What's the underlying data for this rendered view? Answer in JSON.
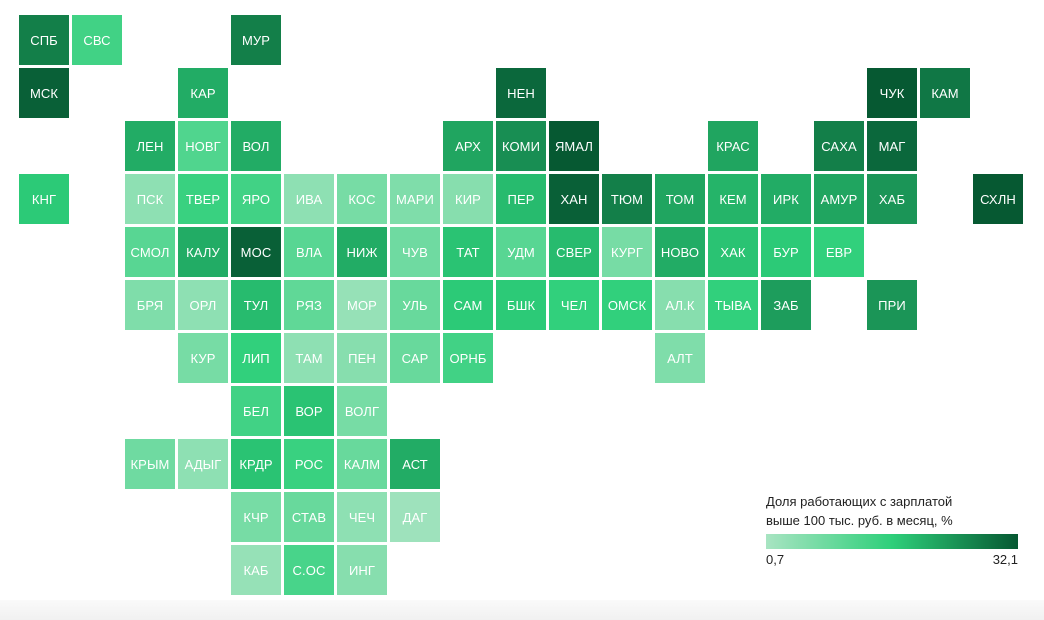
{
  "colors": {
    "min": "#a8e4c2",
    "mid": "#2ecf7a",
    "max": "#065832",
    "text": "#ffffff"
  },
  "legend": {
    "title_line1": "Доля работающих с зарплатой",
    "title_line2": "выше 100 тыс. руб. в месяц, %",
    "min_label": "0,7",
    "max_label": "32,1",
    "min": 0.7,
    "max": 32.1
  },
  "tiles": [
    {
      "label": "СПБ",
      "row": 0,
      "col": 0,
      "value": 27
    },
    {
      "label": "СВС",
      "row": 0,
      "col": 1,
      "value": 14
    },
    {
      "label": "МУР",
      "row": 0,
      "col": 4,
      "value": 27
    },
    {
      "label": "МСК",
      "row": 1,
      "col": 0,
      "value": 31
    },
    {
      "label": "КАР",
      "row": 1,
      "col": 3,
      "value": 21
    },
    {
      "label": "НЕН",
      "row": 1,
      "col": 9,
      "value": 30
    },
    {
      "label": "ЧУК",
      "row": 1,
      "col": 16,
      "value": 32
    },
    {
      "label": "КАМ",
      "row": 1,
      "col": 17,
      "value": 28
    },
    {
      "label": "ЛЕН",
      "row": 2,
      "col": 2,
      "value": 21
    },
    {
      "label": "НОВГ",
      "row": 2,
      "col": 3,
      "value": 12
    },
    {
      "label": "ВОЛ",
      "row": 2,
      "col": 4,
      "value": 21
    },
    {
      "label": "АРХ",
      "row": 2,
      "col": 8,
      "value": 22
    },
    {
      "label": "КОМИ",
      "row": 2,
      "col": 9,
      "value": 25
    },
    {
      "label": "ЯМАЛ",
      "row": 2,
      "col": 10,
      "value": 32
    },
    {
      "label": "КРАС",
      "row": 2,
      "col": 13,
      "value": 22
    },
    {
      "label": "САХА",
      "row": 2,
      "col": 15,
      "value": 27
    },
    {
      "label": "МАГ",
      "row": 2,
      "col": 16,
      "value": 30
    },
    {
      "label": "КНГ",
      "row": 3,
      "col": 0,
      "value": 17
    },
    {
      "label": "ПСК",
      "row": 3,
      "col": 2,
      "value": 4
    },
    {
      "label": "ТВЕР",
      "row": 3,
      "col": 3,
      "value": 15
    },
    {
      "label": "ЯРО",
      "row": 3,
      "col": 4,
      "value": 14
    },
    {
      "label": "ИВА",
      "row": 3,
      "col": 5,
      "value": 4
    },
    {
      "label": "КОС",
      "row": 3,
      "col": 6,
      "value": 7
    },
    {
      "label": "МАРИ",
      "row": 3,
      "col": 7,
      "value": 6
    },
    {
      "label": "КИР",
      "row": 3,
      "col": 8,
      "value": 5
    },
    {
      "label": "ПЕР",
      "row": 3,
      "col": 9,
      "value": 19
    },
    {
      "label": "ХАН",
      "row": 3,
      "col": 10,
      "value": 31
    },
    {
      "label": "ТЮМ",
      "row": 3,
      "col": 11,
      "value": 27
    },
    {
      "label": "ТОМ",
      "row": 3,
      "col": 12,
      "value": 22
    },
    {
      "label": "КЕМ",
      "row": 3,
      "col": 13,
      "value": 20
    },
    {
      "label": "ИРК",
      "row": 3,
      "col": 14,
      "value": 21
    },
    {
      "label": "АМУР",
      "row": 3,
      "col": 15,
      "value": 22
    },
    {
      "label": "ХАБ",
      "row": 3,
      "col": 16,
      "value": 24
    },
    {
      "label": "СХЛН",
      "row": 3,
      "col": 18,
      "value": 32
    },
    {
      "label": "СМОЛ",
      "row": 4,
      "col": 2,
      "value": 11
    },
    {
      "label": "КАЛУ",
      "row": 4,
      "col": 3,
      "value": 21
    },
    {
      "label": "МОС",
      "row": 4,
      "col": 4,
      "value": 31
    },
    {
      "label": "ВЛА",
      "row": 4,
      "col": 5,
      "value": 11
    },
    {
      "label": "НИЖ",
      "row": 4,
      "col": 6,
      "value": 21
    },
    {
      "label": "ЧУВ",
      "row": 4,
      "col": 7,
      "value": 8
    },
    {
      "label": "ТАТ",
      "row": 4,
      "col": 8,
      "value": 18
    },
    {
      "label": "УДМ",
      "row": 4,
      "col": 9,
      "value": 11
    },
    {
      "label": "СВЕР",
      "row": 4,
      "col": 10,
      "value": 19
    },
    {
      "label": "КУРГ",
      "row": 4,
      "col": 11,
      "value": 7
    },
    {
      "label": "НОВО",
      "row": 4,
      "col": 12,
      "value": 21
    },
    {
      "label": "ХАК",
      "row": 4,
      "col": 13,
      "value": 18
    },
    {
      "label": "БУР",
      "row": 4,
      "col": 14,
      "value": 17
    },
    {
      "label": "ЕВР",
      "row": 4,
      "col": 15,
      "value": 16
    },
    {
      "label": "БРЯ",
      "row": 5,
      "col": 2,
      "value": 6
    },
    {
      "label": "ОРЛ",
      "row": 5,
      "col": 3,
      "value": 4
    },
    {
      "label": "ТУЛ",
      "row": 5,
      "col": 4,
      "value": 19
    },
    {
      "label": "РЯЗ",
      "row": 5,
      "col": 5,
      "value": 10
    },
    {
      "label": "МОР",
      "row": 5,
      "col": 6,
      "value": 3
    },
    {
      "label": "УЛЬ",
      "row": 5,
      "col": 7,
      "value": 9
    },
    {
      "label": "САМ",
      "row": 5,
      "col": 8,
      "value": 17
    },
    {
      "label": "БШК",
      "row": 5,
      "col": 9,
      "value": 17
    },
    {
      "label": "ЧЕЛ",
      "row": 5,
      "col": 10,
      "value": 16
    },
    {
      "label": "ОМСК",
      "row": 5,
      "col": 11,
      "value": 16
    },
    {
      "label": "АЛ.К",
      "row": 5,
      "col": 12,
      "value": 5
    },
    {
      "label": "ТЫВА",
      "row": 5,
      "col": 13,
      "value": 16
    },
    {
      "label": "ЗАБ",
      "row": 5,
      "col": 14,
      "value": 23
    },
    {
      "label": "ПРИ",
      "row": 5,
      "col": 16,
      "value": 24
    },
    {
      "label": "КУР",
      "row": 6,
      "col": 3,
      "value": 7
    },
    {
      "label": "ЛИП",
      "row": 6,
      "col": 4,
      "value": 16
    },
    {
      "label": "ТАМ",
      "row": 6,
      "col": 5,
      "value": 4
    },
    {
      "label": "ПЕН",
      "row": 6,
      "col": 6,
      "value": 5
    },
    {
      "label": "САР",
      "row": 6,
      "col": 7,
      "value": 9
    },
    {
      "label": "ОРНБ",
      "row": 6,
      "col": 8,
      "value": 14
    },
    {
      "label": "АЛТ",
      "row": 6,
      "col": 12,
      "value": 6
    },
    {
      "label": "БЕЛ",
      "row": 7,
      "col": 4,
      "value": 14
    },
    {
      "label": "ВОР",
      "row": 7,
      "col": 5,
      "value": 18
    },
    {
      "label": "ВОЛГ",
      "row": 7,
      "col": 6,
      "value": 7
    },
    {
      "label": "КРЫМ",
      "row": 8,
      "col": 2,
      "value": 8
    },
    {
      "label": "АДЫГ",
      "row": 8,
      "col": 3,
      "value": 4
    },
    {
      "label": "КРДР",
      "row": 8,
      "col": 4,
      "value": 18
    },
    {
      "label": "РОС",
      "row": 8,
      "col": 5,
      "value": 15
    },
    {
      "label": "КАЛМ",
      "row": 8,
      "col": 6,
      "value": 9
    },
    {
      "label": "АСТ",
      "row": 8,
      "col": 7,
      "value": 21
    },
    {
      "label": "КЧР",
      "row": 9,
      "col": 4,
      "value": 7
    },
    {
      "label": "СТАВ",
      "row": 9,
      "col": 5,
      "value": 9
    },
    {
      "label": "ЧЕЧ",
      "row": 9,
      "col": 6,
      "value": 4
    },
    {
      "label": "ДАГ",
      "row": 9,
      "col": 7,
      "value": 2
    },
    {
      "label": "КАБ",
      "row": 10,
      "col": 4,
      "value": 3
    },
    {
      "label": "С.ОС",
      "row": 10,
      "col": 5,
      "value": 13
    },
    {
      "label": "ИНГ",
      "row": 10,
      "col": 6,
      "value": 5
    }
  ]
}
